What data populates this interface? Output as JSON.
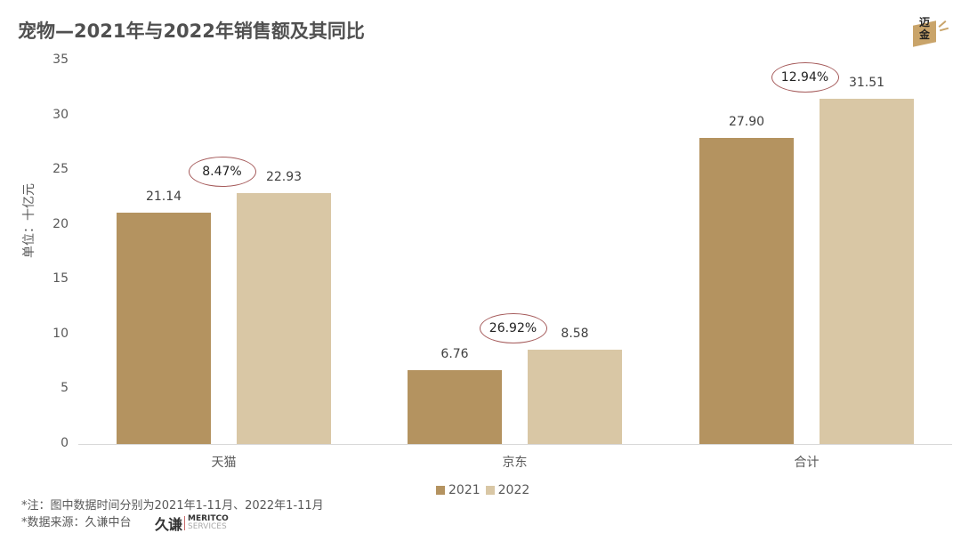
{
  "title": "宠物—2021年与2022年销售额及其同比",
  "logo": {
    "line1": "迈",
    "line2": "金"
  },
  "chart_data": {
    "type": "bar",
    "title": "宠物—2021年与2022年销售额及其同比",
    "xlabel": "",
    "ylabel": "单位：十亿元",
    "ylim": [
      0,
      35
    ],
    "yticks": [
      "0",
      "5",
      "10",
      "15",
      "20",
      "25",
      "30",
      "35"
    ],
    "categories": [
      "天猫",
      "京东",
      "合计"
    ],
    "series": [
      {
        "name": "2021",
        "color": "#b49360",
        "values": [
          21.14,
          6.76,
          27.9
        ],
        "labels": [
          "21.14",
          "6.76",
          "27.90"
        ]
      },
      {
        "name": "2022",
        "color": "#d9c7a5",
        "values": [
          22.93,
          8.58,
          31.51
        ],
        "labels": [
          "22.93",
          "8.58",
          "31.51"
        ]
      }
    ],
    "annotations": [
      "8.47%",
      "26.92%",
      "12.94%"
    ],
    "annotation_meaning": "同比",
    "grid": false,
    "legend_position": "bottom"
  },
  "legend": [
    "2021",
    "2022"
  ],
  "notes": {
    "line1": "*注：图中数据时间分别为2021年1-11月、2022年1-11月",
    "line2": "*数据来源：久谦中台"
  },
  "brand": {
    "cn": "久谦",
    "en1": "MERITCO",
    "en2": "SERVICES"
  }
}
